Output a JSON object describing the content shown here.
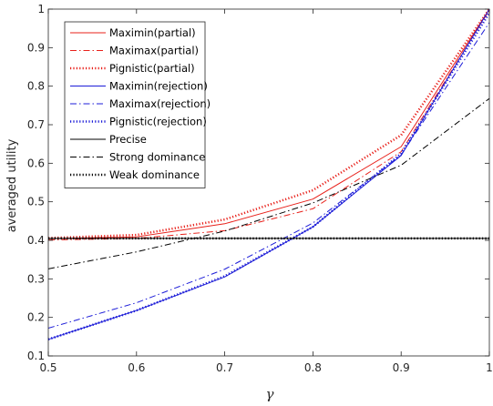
{
  "chart_data": {
    "type": "line",
    "xlabel": "γ",
    "ylabel": "averaged utility",
    "xlim": [
      0.5,
      1
    ],
    "ylim": [
      0.1,
      1
    ],
    "x_ticks": [
      "0.5",
      "0.6",
      "0.7",
      "0.8",
      "0.9",
      "1"
    ],
    "y_ticks": [
      "0.1",
      "0.2",
      "0.3",
      "0.4",
      "0.5",
      "0.6",
      "0.7",
      "0.8",
      "0.9",
      "1"
    ],
    "grid": false,
    "legend_position": "top-left",
    "x": [
      0.5,
      0.6,
      0.7,
      0.8,
      0.9,
      1.0
    ],
    "series": [
      {
        "name": "Maximin(partial)",
        "color": "#e8201a",
        "style": "solid",
        "width": 1,
        "values": [
          0.404,
          0.409,
          0.443,
          0.507,
          0.643,
          1.0
        ]
      },
      {
        "name": "Maximax(partial)",
        "color": "#e8201a",
        "style": "dashdot",
        "width": 1,
        "values": [
          0.401,
          0.405,
          0.425,
          0.482,
          0.63,
          0.997
        ]
      },
      {
        "name": "Pignistic(partial)",
        "color": "#e8201a",
        "style": "dotted",
        "width": 2.5,
        "values": [
          0.406,
          0.414,
          0.454,
          0.53,
          0.673,
          1.0
        ]
      },
      {
        "name": "Maximin(rejection)",
        "color": "#1c1cd8",
        "style": "solid",
        "width": 1,
        "values": [
          0.143,
          0.218,
          0.305,
          0.435,
          0.62,
          1.0
        ]
      },
      {
        "name": "Maximax(rejection)",
        "color": "#1c1cd8",
        "style": "dashdot",
        "width": 1,
        "values": [
          0.172,
          0.238,
          0.325,
          0.445,
          0.622,
          0.965
        ]
      },
      {
        "name": "Pignistic(rejection)",
        "color": "#1c1cd8",
        "style": "dotted",
        "width": 2.5,
        "values": [
          0.143,
          0.218,
          0.307,
          0.435,
          0.625,
          0.99
        ]
      },
      {
        "name": "Precise",
        "color": "#000000",
        "style": "solid",
        "width": 1,
        "values": [
          0.405,
          0.405,
          0.405,
          0.405,
          0.405,
          0.405
        ]
      },
      {
        "name": "Strong dominance",
        "color": "#000000",
        "style": "dashdot",
        "width": 1,
        "values": [
          0.326,
          0.37,
          0.424,
          0.497,
          0.595,
          0.768
        ]
      },
      {
        "name": "Weak dominance",
        "color": "#000000",
        "style": "dotted",
        "width": 2.5,
        "values": [
          0.405,
          0.405,
          0.405,
          0.405,
          0.405,
          0.405
        ]
      }
    ]
  }
}
